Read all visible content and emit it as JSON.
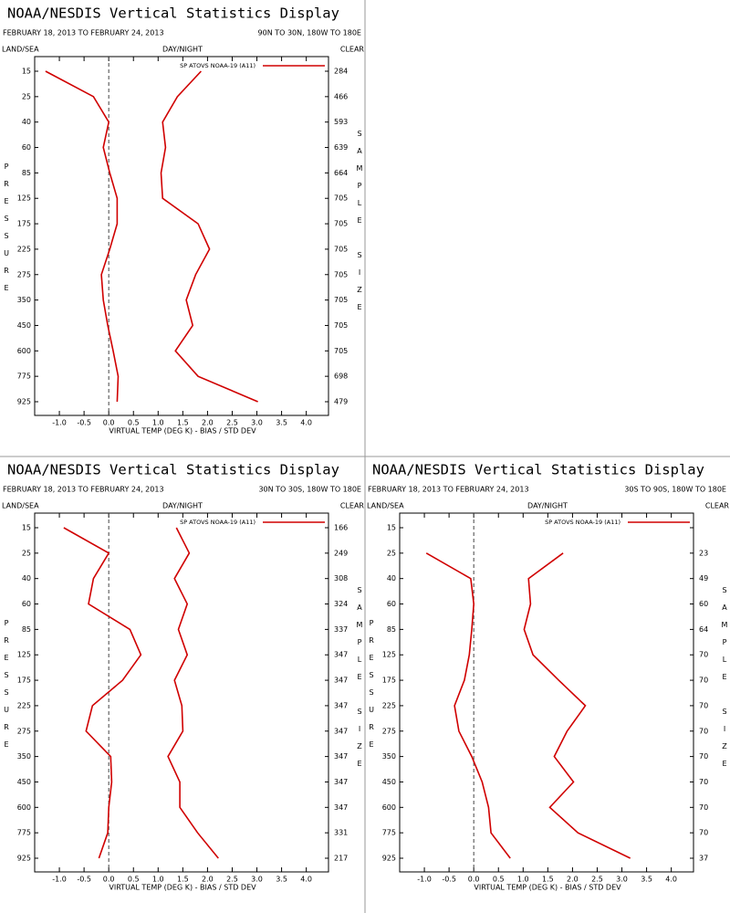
{
  "chart_data": [
    {
      "type": "line",
      "title": "NOAA/NESDIS Vertical Statistics Display",
      "date_range": "FEBRUARY 18, 2013 TO FEBRUARY 24, 2013",
      "region": "90N TO 30N, 180W TO 180E",
      "surface": "LAND/SEA",
      "time": "DAY/NIGHT",
      "sky": "CLEAR",
      "ylabel": "PRESSURE",
      "y2label": "SAMPLE SIZE",
      "xlabel": "VIRTUAL TEMP (DEG K) - BIAS / STD DEV",
      "categories": [
        15,
        25,
        40,
        60,
        85,
        125,
        175,
        225,
        275,
        350,
        450,
        600,
        775,
        925
      ],
      "sample_sizes": [
        284,
        466,
        593,
        639,
        664,
        705,
        705,
        705,
        705,
        705,
        705,
        705,
        698,
        479
      ],
      "series": [
        {
          "name": "SP ATOVS NOAA-19 (A11)",
          "color": "#d00000",
          "bias": [
            -1.28,
            -0.31,
            0.0,
            -0.11,
            0.02,
            0.17,
            0.17,
            0.02,
            -0.15,
            -0.11,
            -0.02,
            0.09,
            0.19,
            0.17
          ],
          "std_dev": [
            1.87,
            1.39,
            1.09,
            1.15,
            1.06,
            1.09,
            1.81,
            2.04,
            1.76,
            1.57,
            1.7,
            1.35,
            1.81,
            3.02
          ]
        }
      ],
      "xlim": [
        -1.5,
        4.45
      ],
      "xticks": [
        {
          "value": -1,
          "label": "-1.0"
        },
        -0.5,
        {
          "value": 0,
          "label": "0.0"
        },
        0.5,
        {
          "value": 1,
          "label": "1.0"
        },
        1.5,
        {
          "value": 2,
          "label": "2.0"
        },
        2.5,
        {
          "value": 3,
          "label": "3.0"
        },
        3.5,
        {
          "value": 4,
          "label": "4.0"
        }
      ]
    },
    {
      "type": "line",
      "title": "NOAA/NESDIS Vertical Statistics Display",
      "date_range": "FEBRUARY 18, 2013 TO FEBRUARY 24, 2013",
      "region": "30N TO 30S, 180W TO 180E",
      "surface": "LAND/SEA",
      "time": "DAY/NIGHT",
      "sky": "CLEAR",
      "ylabel": "PRESSURE",
      "y2label": "SAMPLE SIZE",
      "xlabel": "VIRTUAL TEMP (DEG K) - BIAS / STD DEV",
      "categories": [
        15,
        25,
        40,
        60,
        85,
        125,
        175,
        225,
        275,
        350,
        450,
        600,
        775,
        925
      ],
      "sample_sizes": [
        166,
        249,
        308,
        324,
        337,
        347,
        347,
        347,
        347,
        347,
        347,
        347,
        331,
        217
      ],
      "series": [
        {
          "name": "SP ATOVS NOAA-19 (A11)",
          "color": "#d00000",
          "bias": [
            -0.91,
            0.0,
            -0.31,
            -0.41,
            0.43,
            0.65,
            0.28,
            -0.33,
            -0.46,
            0.04,
            0.06,
            0.0,
            -0.02,
            -0.2
          ],
          "std_dev": [
            1.37,
            1.63,
            1.33,
            1.59,
            1.41,
            1.59,
            1.33,
            1.48,
            1.5,
            1.2,
            1.44,
            1.44,
            1.8,
            2.22
          ]
        }
      ],
      "xlim": [
        -1.5,
        4.45
      ],
      "xticks": [
        {
          "value": -1,
          "label": "-1.0"
        },
        -0.5,
        {
          "value": 0,
          "label": "0.0"
        },
        0.5,
        {
          "value": 1,
          "label": "1.0"
        },
        1.5,
        {
          "value": 2,
          "label": "2.0"
        },
        2.5,
        {
          "value": 3,
          "label": "3.0"
        },
        3.5,
        {
          "value": 4,
          "label": "4.0"
        }
      ]
    },
    {
      "type": "line",
      "title": "NOAA/NESDIS Vertical Statistics Display",
      "date_range": "FEBRUARY 18, 2013 TO FEBRUARY 24, 2013",
      "region": "30S TO 90S, 180W TO 180E",
      "surface": "LAND/SEA",
      "time": "DAY/NIGHT",
      "sky": "CLEAR",
      "ylabel": "PRESSURE",
      "y2label": "SAMPLE SIZE",
      "xlabel": "VIRTUAL TEMP (DEG K) - BIAS / STD DEV",
      "categories": [
        15,
        25,
        40,
        60,
        85,
        125,
        175,
        225,
        275,
        350,
        450,
        600,
        775,
        925
      ],
      "sample_sizes": [
        null,
        23,
        49,
        60,
        64,
        70,
        70,
        70,
        70,
        70,
        70,
        70,
        70,
        37
      ],
      "series": [
        {
          "name": "SP ATOVS NOAA-19 (A11)",
          "color": "#d00000",
          "bias": [
            null,
            -0.96,
            -0.06,
            0.0,
            -0.04,
            -0.09,
            -0.19,
            -0.39,
            -0.3,
            -0.04,
            0.17,
            0.3,
            0.35,
            0.74
          ],
          "std_dev": [
            null,
            1.81,
            1.11,
            1.15,
            1.02,
            1.2,
            1.72,
            2.26,
            1.89,
            1.63,
            2.02,
            1.54,
            2.11,
            3.17
          ]
        }
      ],
      "xlim": [
        -1.5,
        4.45
      ],
      "xticks": [
        {
          "value": -1,
          "label": "-1.0"
        },
        -0.5,
        {
          "value": 0,
          "label": "0.0"
        },
        0.5,
        {
          "value": 1,
          "label": "1.0"
        },
        1.5,
        {
          "value": 2,
          "label": "2.0"
        },
        2.5,
        {
          "value": 3,
          "label": "3.0"
        },
        3.5,
        {
          "value": 4,
          "label": "4.0"
        }
      ]
    }
  ]
}
